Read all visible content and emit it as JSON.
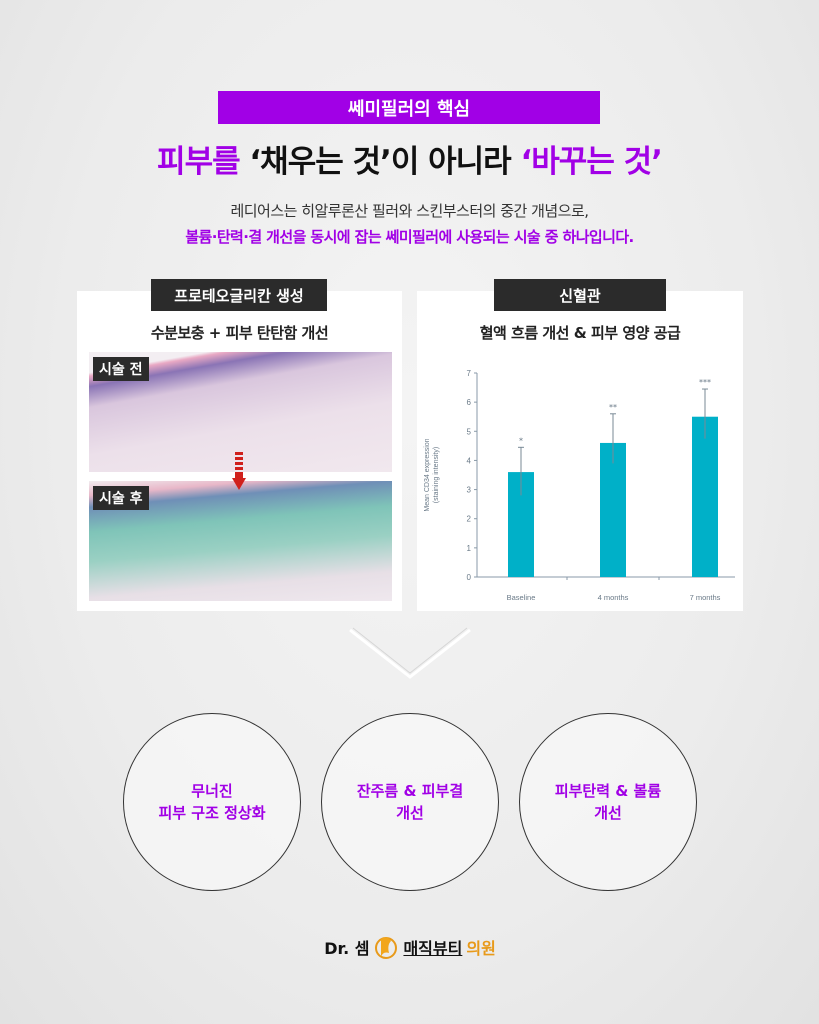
{
  "banner": "쎄미필러의 핵심",
  "headline": {
    "part1": "피부를",
    "part2": " ‘채우는 것’이 아니라 ",
    "part3": "‘바꾸는 것’"
  },
  "intro": {
    "line1": "레디어스는 히알루론산 필러와 스킨부스터의 중간 개념으로,",
    "line2": "볼륨·탄력·결 개선을 동시에 잡는 쎄미필러에 사용되는 시술 중 하나입니다."
  },
  "left_panel": {
    "tag": "프로테오글리칸 생성",
    "title": "수분보충 + 피부 탄탄함 개선",
    "before_label": "시술 전",
    "after_label": "시술 후"
  },
  "right_panel": {
    "tag": "신혈관",
    "title": "혈액 흐름 개선 & 피부 영양 공급"
  },
  "chart_data": {
    "type": "bar",
    "categories": [
      "Baseline",
      "4 months",
      "7 months"
    ],
    "values": [
      3.6,
      4.6,
      5.5
    ],
    "error_upper": [
      4.45,
      5.6,
      6.45
    ],
    "error_lower": [
      2.8,
      3.9,
      4.75
    ],
    "significance": [
      "*",
      "**",
      "***"
    ],
    "ylabel": "Mean CD34 expression (staining intensity)",
    "ylabel_line1": "Mean CD34 expression",
    "ylabel_line2": "(staining intensity)",
    "ylim": [
      0,
      7
    ],
    "yticks": [
      0,
      1,
      2,
      3,
      4,
      5,
      6,
      7
    ],
    "grid": false,
    "bar_color": "#00b0c8"
  },
  "results": [
    {
      "line1": "무너진",
      "line2": "피부 구조 정상화"
    },
    {
      "line1": "잔주름 & 피부결",
      "line2": "개선"
    },
    {
      "line1": "피부탄력 & 볼륨",
      "line2": "개선"
    }
  ],
  "logo": {
    "part1": "Dr. 셈",
    "part2": "매직뷰티",
    "part3": "의원"
  },
  "colors": {
    "accent": "#a100e6",
    "dark": "#2b2b2b",
    "bar": "#00b0c8"
  }
}
